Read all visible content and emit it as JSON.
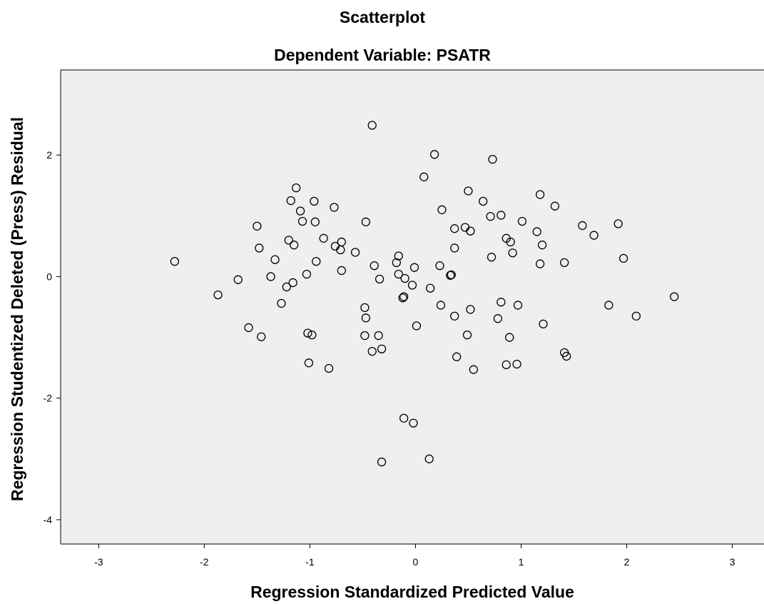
{
  "chart_data": {
    "type": "scatter",
    "title": "Scatterplot",
    "subtitle": "Dependent Variable: PSATR",
    "xlabel": "Regression Standardized Predicted Value",
    "ylabel": "Regression Studentized Deleted (Press) Residual",
    "xlim": [
      -3.36,
      3.3
    ],
    "ylim": [
      -4.4,
      3.4
    ],
    "xticks": [
      -3,
      -2,
      -1,
      0,
      1,
      2,
      3
    ],
    "xtick_labels": [
      "-3",
      "-2",
      "-1",
      "0",
      "1",
      "2",
      "3"
    ],
    "yticks": [
      -4,
      -2,
      0,
      2
    ],
    "ytick_labels": [
      "-4",
      "-2",
      "0",
      "2"
    ],
    "grid": false,
    "marker": "hollow-circle",
    "colors": {
      "plot_background": "#efefef",
      "marker_stroke": "#000000",
      "frame": "#000000"
    },
    "points": [
      {
        "x": -2.28,
        "y": 0.25
      },
      {
        "x": -1.87,
        "y": -0.3
      },
      {
        "x": -1.68,
        "y": -0.05
      },
      {
        "x": -1.58,
        "y": -0.84
      },
      {
        "x": -1.5,
        "y": 0.83
      },
      {
        "x": -1.48,
        "y": 0.47
      },
      {
        "x": -1.46,
        "y": -0.99
      },
      {
        "x": -1.37,
        "y": 0.0
      },
      {
        "x": -1.33,
        "y": 0.28
      },
      {
        "x": -1.27,
        "y": -0.44
      },
      {
        "x": -1.22,
        "y": -0.17
      },
      {
        "x": -1.2,
        "y": 0.6
      },
      {
        "x": -1.18,
        "y": 1.25
      },
      {
        "x": -1.16,
        "y": -0.1
      },
      {
        "x": -1.15,
        "y": 0.52
      },
      {
        "x": -1.13,
        "y": 1.46
      },
      {
        "x": -1.09,
        "y": 1.08
      },
      {
        "x": -1.07,
        "y": 0.91
      },
      {
        "x": -1.03,
        "y": 0.04
      },
      {
        "x": -1.02,
        "y": -0.93
      },
      {
        "x": -1.01,
        "y": -1.42
      },
      {
        "x": -0.98,
        "y": -0.96
      },
      {
        "x": -0.96,
        "y": 1.24
      },
      {
        "x": -0.95,
        "y": 0.9
      },
      {
        "x": -0.94,
        "y": 0.25
      },
      {
        "x": -0.87,
        "y": 0.63
      },
      {
        "x": -0.82,
        "y": -1.51
      },
      {
        "x": -0.77,
        "y": 1.14
      },
      {
        "x": -0.76,
        "y": 0.5
      },
      {
        "x": -0.71,
        "y": 0.44
      },
      {
        "x": -0.7,
        "y": 0.57
      },
      {
        "x": -0.7,
        "y": 0.1
      },
      {
        "x": -0.57,
        "y": 0.4
      },
      {
        "x": -0.47,
        "y": 0.9
      },
      {
        "x": -0.48,
        "y": -0.51
      },
      {
        "x": -0.47,
        "y": -0.68
      },
      {
        "x": -0.48,
        "y": -0.97
      },
      {
        "x": -0.41,
        "y": 2.49
      },
      {
        "x": -0.41,
        "y": -1.23
      },
      {
        "x": -0.39,
        "y": 0.18
      },
      {
        "x": -0.35,
        "y": -0.97
      },
      {
        "x": -0.34,
        "y": -0.04
      },
      {
        "x": -0.32,
        "y": -1.19
      },
      {
        "x": -0.32,
        "y": -3.05
      },
      {
        "x": -0.18,
        "y": 0.23
      },
      {
        "x": -0.16,
        "y": 0.34
      },
      {
        "x": -0.16,
        "y": 0.04
      },
      {
        "x": -0.12,
        "y": -0.35
      },
      {
        "x": -0.11,
        "y": -0.33
      },
      {
        "x": -0.11,
        "y": -2.33
      },
      {
        "x": -0.1,
        "y": -0.03
      },
      {
        "x": -0.03,
        "y": -0.14
      },
      {
        "x": -0.02,
        "y": -2.41
      },
      {
        "x": -0.01,
        "y": 0.15
      },
      {
        "x": 0.01,
        "y": -0.81
      },
      {
        "x": 0.08,
        "y": 1.64
      },
      {
        "x": 0.14,
        "y": -0.19
      },
      {
        "x": 0.13,
        "y": -3.0
      },
      {
        "x": 0.18,
        "y": 2.01
      },
      {
        "x": 0.23,
        "y": 0.18
      },
      {
        "x": 0.25,
        "y": 1.1
      },
      {
        "x": 0.24,
        "y": -0.47
      },
      {
        "x": 0.33,
        "y": 0.02
      },
      {
        "x": 0.34,
        "y": 0.03
      },
      {
        "x": 0.37,
        "y": 0.79
      },
      {
        "x": 0.37,
        "y": 0.47
      },
      {
        "x": 0.37,
        "y": -0.65
      },
      {
        "x": 0.39,
        "y": -1.32
      },
      {
        "x": 0.47,
        "y": 0.81
      },
      {
        "x": 0.5,
        "y": 1.41
      },
      {
        "x": 0.49,
        "y": -0.96
      },
      {
        "x": 0.52,
        "y": 0.75
      },
      {
        "x": 0.52,
        "y": -0.54
      },
      {
        "x": 0.55,
        "y": -1.53
      },
      {
        "x": 0.64,
        "y": 1.24
      },
      {
        "x": 0.71,
        "y": 0.99
      },
      {
        "x": 0.72,
        "y": 0.32
      },
      {
        "x": 0.73,
        "y": 1.93
      },
      {
        "x": 0.78,
        "y": -0.69
      },
      {
        "x": 0.81,
        "y": 1.01
      },
      {
        "x": 0.81,
        "y": -0.42
      },
      {
        "x": 0.86,
        "y": 0.63
      },
      {
        "x": 0.86,
        "y": -1.45
      },
      {
        "x": 0.89,
        "y": -1.0
      },
      {
        "x": 0.9,
        "y": 0.57
      },
      {
        "x": 0.92,
        "y": 0.39
      },
      {
        "x": 0.96,
        "y": -1.44
      },
      {
        "x": 0.97,
        "y": -0.47
      },
      {
        "x": 1.01,
        "y": 0.91
      },
      {
        "x": 1.15,
        "y": 0.74
      },
      {
        "x": 1.18,
        "y": 1.35
      },
      {
        "x": 1.18,
        "y": 0.21
      },
      {
        "x": 1.2,
        "y": 0.52
      },
      {
        "x": 1.21,
        "y": -0.78
      },
      {
        "x": 1.32,
        "y": 1.16
      },
      {
        "x": 1.41,
        "y": 0.23
      },
      {
        "x": 1.41,
        "y": -1.25
      },
      {
        "x": 1.43,
        "y": -1.31
      },
      {
        "x": 1.58,
        "y": 0.84
      },
      {
        "x": 1.69,
        "y": 0.68
      },
      {
        "x": 1.83,
        "y": -0.47
      },
      {
        "x": 1.92,
        "y": 0.87
      },
      {
        "x": 1.97,
        "y": 0.3
      },
      {
        "x": 2.09,
        "y": -0.65
      },
      {
        "x": 2.45,
        "y": -0.33
      }
    ]
  }
}
